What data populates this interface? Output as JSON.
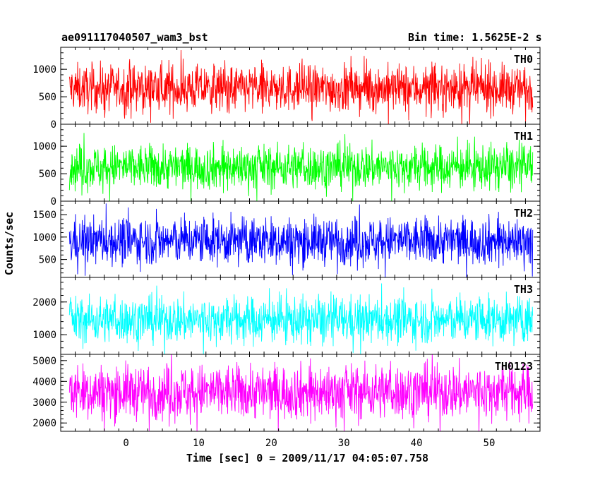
{
  "header": {
    "obs_id": "ae091117040507_wam3_bst",
    "bin_time": "Bin time: 1.5625E-2 s"
  },
  "chart_data": {
    "type": "line",
    "title": "ae091117040507_wam3_bst",
    "subtitle": "Bin time: 1.5625E-2 s",
    "xlabel": "Time [sec] 0 = 2009/11/17 04:05:07.758",
    "ylabel": "Counts/sec",
    "xlim": [
      -9,
      57
    ],
    "x_data_range": [
      -7.8,
      56.0
    ],
    "x_ticks": [
      0,
      10,
      20,
      30,
      40,
      50
    ],
    "x_tick_labels": [
      "0",
      "10",
      "20",
      "30",
      "40",
      "50"
    ],
    "panels": [
      {
        "name": "TH0",
        "color": "#ff0000",
        "ylim": [
          0,
          1400
        ],
        "y_ticks": [
          0,
          500,
          1000
        ],
        "y_tick_labels": [
          "0",
          "500",
          "1000"
        ],
        "mean": 650,
        "sigma": 210
      },
      {
        "name": "TH1",
        "color": "#00ff00",
        "ylim": [
          0,
          1400
        ],
        "y_ticks": [
          0,
          500,
          1000
        ],
        "y_tick_labels": [
          "0",
          "500",
          "1000"
        ],
        "mean": 620,
        "sigma": 200
      },
      {
        "name": "TH2",
        "color": "#0000ff",
        "ylim": [
          100,
          1800
        ],
        "y_ticks": [
          500,
          1000,
          1500
        ],
        "y_tick_labels": [
          "500",
          "1000",
          "1500"
        ],
        "mean": 920,
        "sigma": 260
      },
      {
        "name": "TH3",
        "color": "#00ffff",
        "ylim": [
          400,
          2750
        ],
        "y_ticks": [
          1000,
          2000
        ],
        "y_tick_labels": [
          "1000",
          "2000"
        ],
        "mean": 1450,
        "sigma": 350
      },
      {
        "name": "TH0123",
        "color": "#ff00ff",
        "ylim": [
          1600,
          5300
        ],
        "y_ticks": [
          2000,
          3000,
          4000,
          5000
        ],
        "y_tick_labels": [
          "2000",
          "3000",
          "4000",
          "5000"
        ],
        "mean": 3500,
        "sigma": 650
      }
    ]
  }
}
